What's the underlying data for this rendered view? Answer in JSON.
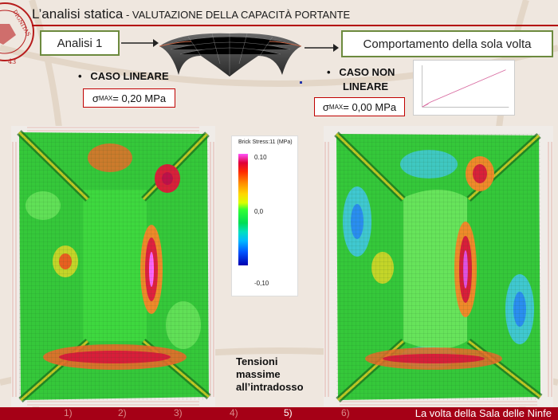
{
  "title": {
    "main": "L’analisi statica",
    "separator": " - ",
    "sub": "VALUTAZIONE DELLA CAPACITÀ PORTANTE"
  },
  "boxes": {
    "analysis": "Analisi 1",
    "behavior": "Comportamento della sola volta"
  },
  "linear_case": {
    "label": "CASO LINEARE",
    "sigma_symbol": "σ",
    "sigma_sub": "MAX",
    "sigma_value": " = 0,20 MPa"
  },
  "nonlinear_case": {
    "label_line1": "CASO NON",
    "label_line2": "LINEARE",
    "sigma_symbol": "σ",
    "sigma_sub": "MAX",
    "sigma_value": " = 0,00 MPa"
  },
  "legend": {
    "title": "Brick Stress:11  (MPa)",
    "ticks": [
      "0.10",
      "0,0",
      "-0,10"
    ]
  },
  "caption": {
    "line1": "Tensioni",
    "line2": "massime",
    "line3": "all’intradosso"
  },
  "footer": {
    "pages": [
      "1)",
      "2)",
      "3)",
      "4)",
      "5)",
      "6)"
    ],
    "current_page": "5)",
    "title": "La volta della Sala delle Ninfe"
  },
  "colors": {
    "accent_red": "#b30000",
    "box_border": "#6c8a3e",
    "footer_bg": "#a50016"
  }
}
